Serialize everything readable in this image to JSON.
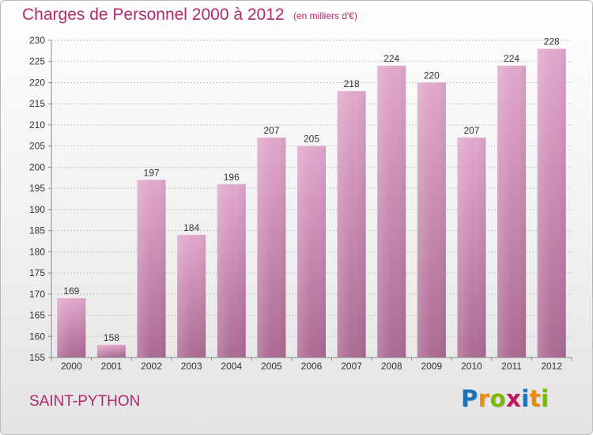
{
  "header": {
    "title": "Charges de Personnel 2000 à 2012",
    "unit": "(en milliers d'€)"
  },
  "footer": {
    "town": "SAINT-PYTHON",
    "logo": {
      "text": "Proxiti",
      "letters": [
        {
          "char": "P",
          "color": "#1a73b8"
        },
        {
          "char": "r",
          "color": "#f08a00"
        },
        {
          "char": "o",
          "color": "#7ab800"
        },
        {
          "char": "x",
          "color": "#c0145c"
        },
        {
          "char": "i",
          "color": "#1a73b8"
        },
        {
          "char": "t",
          "color": "#f08a00"
        },
        {
          "char": "i",
          "color": "#7ab800"
        }
      ]
    }
  },
  "colors": {
    "title": "#b02a6b",
    "bar_top": "#e2a8cc",
    "bar_bottom": "#ac6a92",
    "grid": "#c8c8c8"
  },
  "chart_data": {
    "type": "bar",
    "title": "Charges de Personnel 2000 à 2012",
    "subtitle": "(en milliers d'€)",
    "categories": [
      "2000",
      "2001",
      "2002",
      "2003",
      "2004",
      "2005",
      "2006",
      "2007",
      "2008",
      "2009",
      "2010",
      "2011",
      "2012"
    ],
    "values": [
      169,
      158,
      197,
      184,
      196,
      207,
      205,
      218,
      224,
      220,
      207,
      224,
      228
    ],
    "ylim": [
      155,
      230
    ],
    "ytick_step": 5,
    "grid": true,
    "xlabel": "",
    "ylabel": ""
  }
}
